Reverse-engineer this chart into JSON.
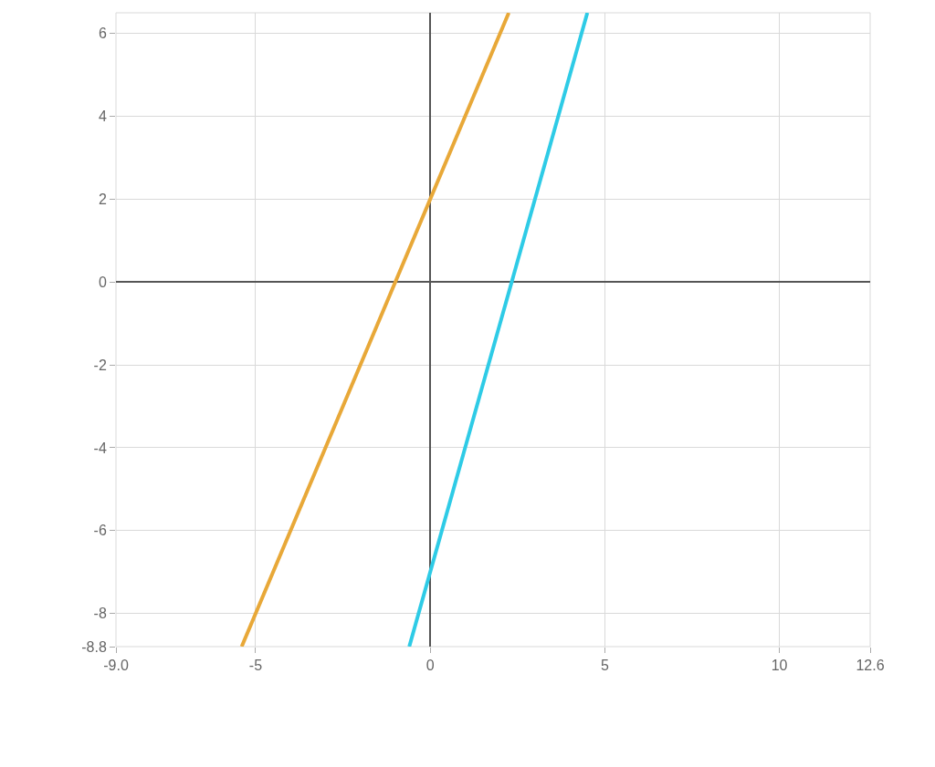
{
  "chart_data": {
    "type": "line",
    "series": [
      {
        "color": "#e8a838",
        "x": [
          -5.4,
          2.25
        ],
        "values": [
          -8.8,
          6.5
        ]
      },
      {
        "color": "#2ecbe6",
        "x": [
          -0.6,
          4.5
        ],
        "values": [
          -8.8,
          6.5
        ]
      }
    ],
    "xlim": [
      -9.0,
      12.6
    ],
    "ylim": [
      -8.8,
      6.5
    ],
    "xticks": [
      {
        "value": -9.0,
        "label": "-9.0"
      },
      -5,
      0,
      5,
      10,
      12.6
    ],
    "yticks": [
      -8.8,
      -8,
      -6,
      -4,
      -2,
      0,
      2,
      4,
      6
    ],
    "grid": true,
    "marker": "none",
    "line_style": "solid"
  }
}
